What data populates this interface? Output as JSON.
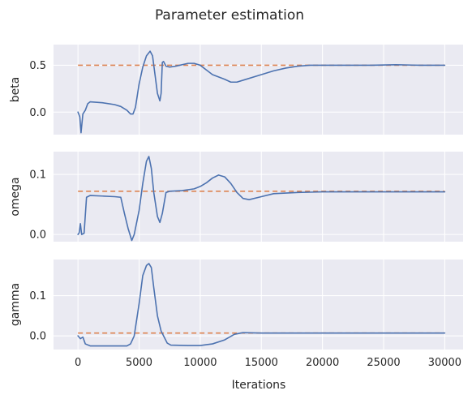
{
  "chart_data": {
    "type": "line",
    "title": "Parameter estimation",
    "xlabel": "Iterations",
    "xlim": [
      -2000,
      31500
    ],
    "x_ticks": [
      0,
      5000,
      10000,
      15000,
      20000,
      25000,
      30000
    ],
    "grid": true,
    "colors": {
      "estimate": "#4c72b0",
      "target": "#dd8452",
      "panel": "#eaeaf2",
      "grid": "#ffffff"
    },
    "panels": [
      {
        "ylabel": "beta",
        "ylim": [
          -0.24,
          0.72
        ],
        "y_ticks": [
          0.0,
          0.5
        ],
        "y_tick_labels": [
          "0.0",
          "0.5"
        ],
        "target": 0.5,
        "estimate": [
          [
            0,
            0.0
          ],
          [
            150,
            -0.05
          ],
          [
            250,
            -0.22
          ],
          [
            400,
            -0.02
          ],
          [
            600,
            0.02
          ],
          [
            800,
            0.09
          ],
          [
            1000,
            0.11
          ],
          [
            2000,
            0.1
          ],
          [
            3000,
            0.08
          ],
          [
            3500,
            0.06
          ],
          [
            4000,
            0.02
          ],
          [
            4300,
            -0.02
          ],
          [
            4500,
            -0.02
          ],
          [
            4700,
            0.05
          ],
          [
            5000,
            0.3
          ],
          [
            5300,
            0.48
          ],
          [
            5600,
            0.6
          ],
          [
            5900,
            0.65
          ],
          [
            6100,
            0.6
          ],
          [
            6300,
            0.4
          ],
          [
            6500,
            0.2
          ],
          [
            6700,
            0.12
          ],
          [
            6800,
            0.2
          ],
          [
            6900,
            0.53
          ],
          [
            7000,
            0.54
          ],
          [
            7200,
            0.49
          ],
          [
            7500,
            0.48
          ],
          [
            8000,
            0.49
          ],
          [
            9000,
            0.52
          ],
          [
            9500,
            0.52
          ],
          [
            10000,
            0.5
          ],
          [
            10500,
            0.45
          ],
          [
            11000,
            0.4
          ],
          [
            12000,
            0.35
          ],
          [
            12500,
            0.32
          ],
          [
            13000,
            0.32
          ],
          [
            13500,
            0.34
          ],
          [
            15000,
            0.4
          ],
          [
            16000,
            0.44
          ],
          [
            17000,
            0.47
          ],
          [
            18000,
            0.49
          ],
          [
            19000,
            0.5
          ],
          [
            20000,
            0.5
          ],
          [
            22000,
            0.5
          ],
          [
            24000,
            0.5
          ],
          [
            26000,
            0.505
          ],
          [
            28000,
            0.5
          ],
          [
            30000,
            0.5
          ]
        ]
      },
      {
        "ylabel": "omega",
        "ylim": [
          -0.012,
          0.138
        ],
        "y_ticks": [
          0.0,
          0.1
        ],
        "y_tick_labels": [
          "0.0",
          "0.1"
        ],
        "target": 0.072,
        "estimate": [
          [
            0,
            0.0
          ],
          [
            100,
            0.003
          ],
          [
            200,
            0.018
          ],
          [
            300,
            0.0
          ],
          [
            500,
            0.002
          ],
          [
            700,
            0.062
          ],
          [
            1000,
            0.065
          ],
          [
            2000,
            0.064
          ],
          [
            3000,
            0.063
          ],
          [
            3500,
            0.062
          ],
          [
            3800,
            0.035
          ],
          [
            4100,
            0.01
          ],
          [
            4400,
            -0.01
          ],
          [
            4600,
            0.0
          ],
          [
            5000,
            0.04
          ],
          [
            5300,
            0.085
          ],
          [
            5600,
            0.122
          ],
          [
            5800,
            0.13
          ],
          [
            6000,
            0.11
          ],
          [
            6200,
            0.07
          ],
          [
            6500,
            0.03
          ],
          [
            6700,
            0.02
          ],
          [
            6900,
            0.035
          ],
          [
            7200,
            0.07
          ],
          [
            7500,
            0.072
          ],
          [
            8500,
            0.073
          ],
          [
            9500,
            0.076
          ],
          [
            10000,
            0.08
          ],
          [
            10500,
            0.086
          ],
          [
            11000,
            0.094
          ],
          [
            11500,
            0.099
          ],
          [
            12000,
            0.096
          ],
          [
            12500,
            0.085
          ],
          [
            13000,
            0.07
          ],
          [
            13500,
            0.06
          ],
          [
            14000,
            0.058
          ],
          [
            15000,
            0.063
          ],
          [
            16000,
            0.068
          ],
          [
            18000,
            0.07
          ],
          [
            20000,
            0.071
          ],
          [
            25000,
            0.071
          ],
          [
            30000,
            0.071
          ]
        ]
      },
      {
        "ylabel": "gamma",
        "ylim": [
          -0.034,
          0.19
        ],
        "y_ticks": [
          0.0,
          0.1
        ],
        "y_tick_labels": [
          "0.0",
          "0.1"
        ],
        "target": 0.007,
        "estimate": [
          [
            0,
            0.0
          ],
          [
            200,
            -0.007
          ],
          [
            400,
            -0.003
          ],
          [
            600,
            -0.02
          ],
          [
            1000,
            -0.025
          ],
          [
            2000,
            -0.025
          ],
          [
            3000,
            -0.025
          ],
          [
            4000,
            -0.025
          ],
          [
            4300,
            -0.02
          ],
          [
            4600,
            0.0
          ],
          [
            5000,
            0.08
          ],
          [
            5300,
            0.15
          ],
          [
            5600,
            0.175
          ],
          [
            5800,
            0.18
          ],
          [
            6000,
            0.17
          ],
          [
            6200,
            0.12
          ],
          [
            6500,
            0.05
          ],
          [
            6800,
            0.012
          ],
          [
            7000,
            0.0
          ],
          [
            7300,
            -0.018
          ],
          [
            7600,
            -0.023
          ],
          [
            9000,
            -0.024
          ],
          [
            10000,
            -0.024
          ],
          [
            11000,
            -0.02
          ],
          [
            12000,
            -0.01
          ],
          [
            12800,
            0.004
          ],
          [
            13500,
            0.008
          ],
          [
            15000,
            0.007
          ],
          [
            20000,
            0.007
          ],
          [
            25000,
            0.007
          ],
          [
            30000,
            0.007
          ]
        ]
      }
    ]
  }
}
